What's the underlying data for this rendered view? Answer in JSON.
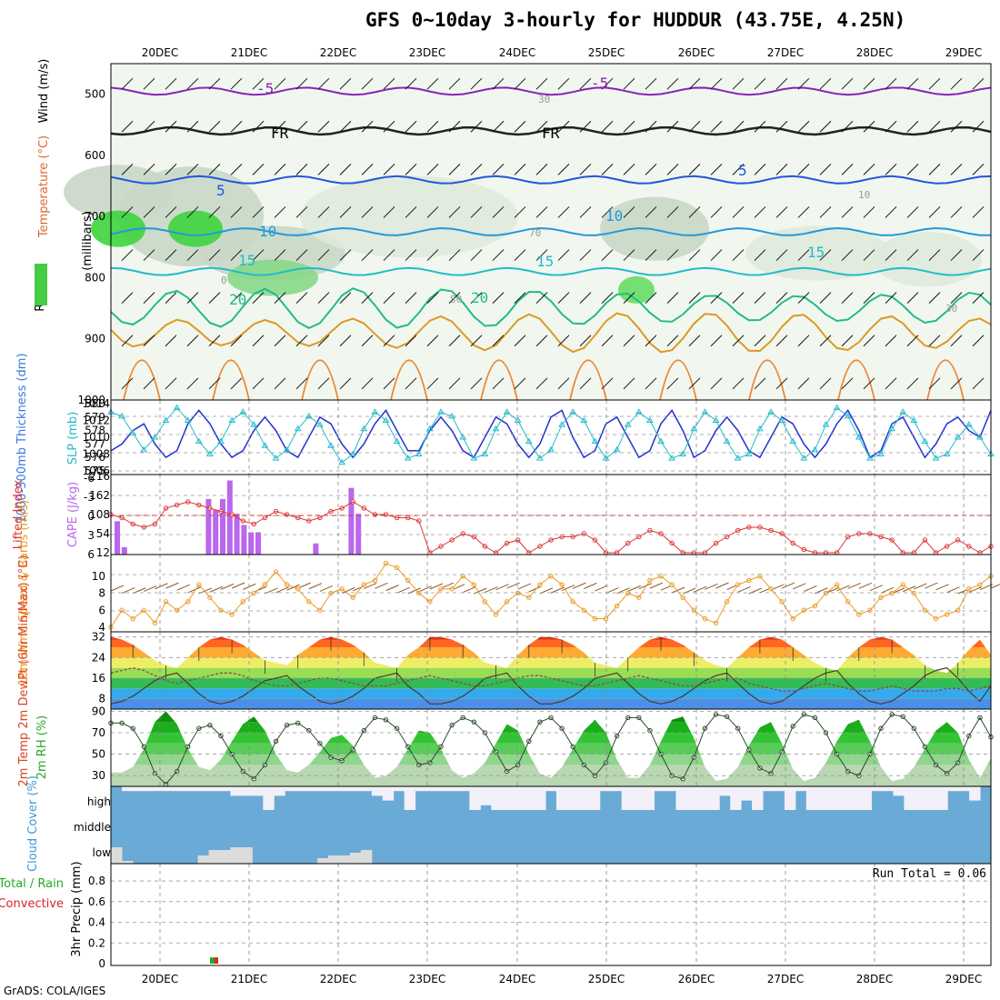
{
  "title": "GFS 0~10day 3-hourly for HUDDUR (43.75E, 4.25N)",
  "credit": "GrADS: COLA/IGES",
  "colors": {
    "rh_green": "#33cc33",
    "temp_line": "#2266ee",
    "wind_barb": "#000000",
    "slp": "#22bbcc",
    "thickness": "#2233cc",
    "lifted": "#dd3333",
    "cape": "#bb66ee",
    "wind": "#ee9922",
    "rh2m": "#22aa22",
    "cloud": "#6aaad6",
    "rain": "#22aa22",
    "conv": "#dd2222"
  },
  "chart_data": [
    {
      "type": "heatmap",
      "panel": "upper-air",
      "x_labels": [
        "20DEC",
        "21DEC",
        "22DEC",
        "23DEC",
        "24DEC",
        "25DEC",
        "26DEC",
        "27DEC",
        "28DEC",
        "29DEC"
      ],
      "y_ticks": [
        "500",
        "600",
        "700",
        "800",
        "900",
        "1000"
      ],
      "ylim": [
        1000,
        450
      ],
      "ylabel_parts": [
        "RH (%)",
        "Temperature (°C)",
        "Wind (m/s)"
      ],
      "ylabel_units": "(millibars)",
      "contour_labels": [
        "-5",
        "-5",
        "FR",
        "FR",
        "5",
        "5",
        "10",
        "10",
        "15",
        "15",
        "15",
        "20",
        "20",
        "10",
        "30",
        "30",
        "50",
        "70",
        "0"
      ],
      "temperature_levels": {
        "-5": 495,
        "FR": 560,
        "5": 640,
        "10": 725,
        "15": 790,
        "20": 850,
        "25": 890
      }
    },
    {
      "type": "line",
      "panel": "thickness-slp",
      "ylabel_left": "1000-500mb Thickness (dm)",
      "ylabel_right": "SLP (mb)",
      "y_ticks_left": [
        "575",
        "576",
        "577",
        "578",
        "579",
        "580"
      ],
      "y_ticks_right": [
        "1006",
        "1008",
        "1010",
        "1012",
        "1014"
      ],
      "series": [
        {
          "name": "Thickness",
          "values": [
            576.5,
            577.0,
            578.0,
            578.5,
            577.0,
            576.0,
            576.5,
            578.5,
            579.5,
            578.5,
            577.0,
            576.0,
            576.5,
            578.0,
            579.0,
            578.0,
            576.5,
            576.0,
            577.5,
            579.0,
            578.5,
            577.0,
            576.0,
            577.0,
            578.5,
            579.5,
            578.0,
            576.5,
            576.5,
            578.0,
            579.0,
            578.0,
            576.5,
            576.0,
            577.5,
            579.0,
            578.5,
            577.0,
            576.0,
            577.0,
            579.0,
            579.5,
            577.5,
            576.0,
            576.5,
            578.5,
            579.0,
            577.5,
            576.0,
            576.5,
            578.5,
            579.5,
            578.0,
            576.0,
            576.5,
            578.0,
            579.0,
            578.0,
            576.5,
            576.0,
            577.5,
            579.0,
            578.5,
            577.0,
            576.0,
            577.0,
            578.5,
            579.5,
            578.0,
            576.0,
            576.5,
            578.5,
            579.0,
            577.5,
            576.0,
            577.0,
            578.5,
            579.0,
            578.0,
            577.5,
            579.5
          ]
        },
        {
          "name": "SLP",
          "values": [
            1013.0,
            1012.5,
            1010.5,
            1008.5,
            1010.0,
            1012.0,
            1013.5,
            1012.0,
            1009.5,
            1008.0,
            1009.5,
            1012.0,
            1013.0,
            1011.5,
            1009.0,
            1007.5,
            1008.5,
            1011.0,
            1012.5,
            1011.5,
            1009.0,
            1007.0,
            1008.0,
            1011.0,
            1013.0,
            1012.0,
            1009.5,
            1007.5,
            1008.0,
            1011.0,
            1013.0,
            1012.5,
            1010.0,
            1007.5,
            1008.0,
            1011.0,
            1013.0,
            1012.0,
            1009.5,
            1007.5,
            1008.5,
            1011.5,
            1013.0,
            1012.0,
            1009.5,
            1007.5,
            1008.5,
            1011.5,
            1013.0,
            1012.0,
            1009.5,
            1007.5,
            1008.0,
            1011.0,
            1013.0,
            1012.0,
            1009.5,
            1007.5,
            1008.0,
            1011.0,
            1013.0,
            1012.0,
            1009.5,
            1007.5,
            1008.5,
            1011.5,
            1013.5,
            1012.5,
            1010.0,
            1007.5,
            1008.0,
            1011.0,
            1013.0,
            1012.0,
            1009.5,
            1007.5,
            1008.0,
            1010.0,
            1011.5,
            1010.0,
            1008.0
          ]
        }
      ]
    },
    {
      "type": "bar",
      "panel": "lifted-cape",
      "ylabel_left": "Lifted Index",
      "ylabel_right": "CAPE (J/kg)",
      "y_ticks_left": [
        "-6",
        "-3",
        "0",
        "3",
        "6"
      ],
      "y_ticks_right": [
        "216",
        "162",
        "108",
        "54",
        "12"
      ],
      "series": [
        {
          "name": "CAPE",
          "values": [
            90,
            20,
            0,
            0,
            0,
            0,
            0,
            0,
            150,
            120,
            150,
            200,
            110,
            80,
            60,
            60,
            0,
            0,
            30,
            0,
            0,
            0,
            0,
            180,
            110,
            0,
            0,
            0
          ]
        },
        {
          "name": "Lifted Index",
          "values": [
            0,
            0.5,
            1.5,
            2,
            1.5,
            -1,
            -1.5,
            -2,
            -1.5,
            -1,
            -0.5,
            0,
            1,
            1.5,
            0.5,
            -0.5,
            0,
            0.5,
            1,
            0.5,
            -0.5,
            -1,
            -2,
            -1,
            0,
            0,
            0.5,
            0.5,
            1,
            6,
            5,
            4,
            3,
            3.5,
            5,
            6,
            4.5,
            4,
            6,
            5,
            4,
            3.5,
            3.5,
            3,
            4,
            6,
            6,
            4.5,
            3.5,
            2.5,
            3,
            4.5,
            6,
            6,
            6,
            4.5,
            3.5,
            2.5,
            2,
            2,
            2.5,
            3,
            4.5,
            5.5,
            6,
            6,
            6,
            3.5,
            3,
            3,
            3.5,
            4,
            6,
            6,
            4,
            6,
            5,
            4,
            5,
            6,
            5
          ]
        }
      ]
    },
    {
      "type": "line",
      "panel": "wind10m",
      "ylabel": "10m Wind Speed & Barbs (m/s)",
      "y_ticks": [
        "4",
        "6",
        "8",
        "10"
      ],
      "values": [
        4,
        6,
        5,
        6,
        4.5,
        7,
        6,
        7,
        9,
        7.5,
        6,
        5.5,
        7,
        8,
        9,
        10.5,
        9,
        8.5,
        7,
        6,
        8,
        8.5,
        7.5,
        9,
        9.5,
        11.5,
        11,
        9.5,
        8,
        7,
        8.5,
        8.5,
        10,
        9,
        7,
        5.5,
        7,
        8,
        7.5,
        9,
        10,
        9,
        7,
        6,
        5,
        5,
        6.5,
        8,
        7.5,
        9.5,
        10,
        9,
        7.5,
        6,
        5,
        4.5,
        7,
        9,
        9.5,
        10,
        8.5,
        7,
        5,
        6,
        6.5,
        8,
        9,
        7,
        5.5,
        6,
        7.5,
        8,
        9,
        8,
        6,
        5,
        5.5,
        6,
        8.5,
        9,
        10
      ]
    },
    {
      "type": "area",
      "panel": "temp2m",
      "ylabel": "2m Temp 2m DewPt (6hr Min/Max) (°C)",
      "y_ticks": [
        "8",
        "16",
        "24",
        "32"
      ],
      "series": [
        {
          "name": "Temp",
          "values": [
            32,
            31,
            29,
            26,
            23,
            21,
            20,
            24,
            28,
            31,
            32,
            31,
            29,
            26,
            23,
            22,
            21,
            25,
            28,
            31,
            32,
            31,
            29,
            26,
            22,
            21,
            20,
            25,
            28,
            32,
            32,
            31,
            29,
            26,
            22,
            21,
            20,
            25,
            29,
            32,
            32,
            31,
            29,
            26,
            22,
            21,
            20,
            24,
            28,
            31,
            32,
            31,
            29,
            26,
            23,
            21,
            20,
            24,
            28,
            31,
            32,
            31,
            28,
            25,
            22,
            20,
            19,
            24,
            28,
            31,
            32,
            31,
            28,
            25,
            21,
            19,
            18,
            22,
            27,
            31,
            25
          ]
        },
        {
          "name": "DewPt",
          "values": [
            18,
            19,
            20,
            19,
            17,
            15,
            14,
            15,
            16,
            17,
            18,
            18,
            17,
            15,
            14,
            13,
            13,
            14,
            15,
            16,
            16,
            15,
            14,
            13,
            13,
            13,
            14,
            15,
            16,
            17,
            16,
            15,
            14,
            13,
            13,
            14,
            15,
            16,
            17,
            17,
            16,
            15,
            14,
            13,
            13,
            14,
            15,
            16,
            17,
            16,
            15,
            14,
            13,
            13,
            14,
            15,
            16,
            16,
            14,
            13,
            12,
            11,
            11,
            12,
            13,
            14,
            13,
            12,
            11,
            11,
            12,
            13,
            12,
            11,
            11,
            11,
            12,
            12,
            11,
            12,
            13
          ]
        }
      ]
    },
    {
      "type": "area",
      "panel": "rh2m",
      "ylabel": "2m RH (%)",
      "y_ticks": [
        "30",
        "50",
        "70",
        "90"
      ],
      "values": [
        33,
        33,
        38,
        55,
        80,
        90,
        78,
        55,
        38,
        35,
        45,
        62,
        78,
        85,
        72,
        50,
        35,
        33,
        40,
        52,
        65,
        68,
        58,
        40,
        28,
        30,
        38,
        55,
        72,
        70,
        55,
        35,
        28,
        32,
        42,
        60,
        78,
        72,
        50,
        32,
        28,
        38,
        55,
        72,
        82,
        70,
        45,
        28,
        28,
        40,
        62,
        82,
        85,
        65,
        38,
        25,
        27,
        38,
        58,
        75,
        80,
        60,
        36,
        25,
        28,
        42,
        62,
        78,
        82,
        62,
        38,
        25,
        27,
        38,
        55,
        72,
        80,
        70,
        45,
        28,
        46
      ]
    },
    {
      "type": "bar",
      "panel": "cloud",
      "ylabel": "Cloud Cover (%)",
      "y_ticks": [
        "high",
        "middle",
        "low"
      ],
      "series": [
        {
          "name": "high",
          "values": [
            100,
            80,
            80,
            80,
            80,
            80,
            80,
            80,
            80,
            80,
            80,
            60,
            60,
            60,
            0,
            60,
            80,
            80,
            80,
            80,
            80,
            80,
            80,
            80,
            60,
            40,
            80,
            0,
            80,
            80,
            80,
            80,
            80,
            0,
            20,
            0,
            0,
            0,
            0,
            0,
            80,
            0,
            0,
            0,
            0,
            80,
            80,
            0,
            0,
            0,
            80,
            80,
            0,
            0,
            0,
            0,
            60,
            0,
            40,
            0,
            80,
            80,
            0,
            80,
            0,
            0,
            0,
            0,
            0,
            0,
            80,
            80,
            60,
            0,
            0,
            0,
            0,
            80,
            80,
            40,
            100
          ]
        },
        {
          "name": "low",
          "values": [
            60,
            10,
            0,
            0,
            0,
            0,
            0,
            0,
            30,
            50,
            50,
            60,
            60,
            0,
            0,
            0,
            0,
            0,
            0,
            20,
            30,
            30,
            40,
            50,
            0,
            0,
            0,
            0,
            0,
            0,
            0,
            0,
            0,
            0,
            0,
            0,
            0,
            0,
            0,
            0,
            0,
            0,
            0,
            0,
            0,
            0,
            0,
            0,
            0,
            0,
            0,
            0,
            0,
            0,
            0,
            0,
            0,
            0,
            0,
            0,
            0,
            0,
            0,
            0,
            0,
            0,
            0,
            0,
            0,
            0,
            0,
            0,
            0,
            0,
            0,
            0,
            0,
            0,
            0,
            0,
            0
          ]
        }
      ]
    },
    {
      "type": "bar",
      "panel": "precip",
      "ylabel_left": "Total / Rain",
      "ylabel_conv": "Convective",
      "ylabel": "3hr Precip (mm)",
      "y_ticks": [
        "0",
        "0.2",
        "0.4",
        "0.6",
        "0.8"
      ],
      "run_total": "Run Total = 0.06",
      "bars": [
        {
          "x_index": 8,
          "rain": 0.06,
          "convective": 0.06
        }
      ]
    }
  ]
}
